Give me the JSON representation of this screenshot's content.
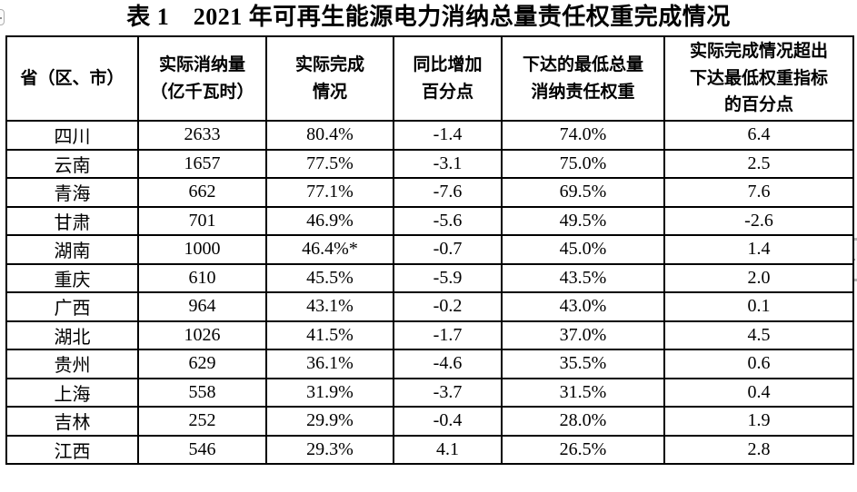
{
  "page": {
    "title": "表 1　2021 年可再生能源电力消纳总量责任权重完成情况"
  },
  "colors": {
    "text": "#000000",
    "border": "#000000",
    "background": "#ffffff"
  },
  "table": {
    "columns": [
      "省（区、市）",
      "实际消纳量\n（亿千瓦时）",
      "实际完成\n情况",
      "同比增加\n百分点",
      "下达的最低总量\n消纳责任权重",
      "实际完成情况超出\n下达最低权重指标\n的百分点"
    ],
    "rows": [
      [
        "四川",
        "2633",
        "80.4%",
        "-1.4",
        "74.0%",
        "6.4"
      ],
      [
        "云南",
        "1657",
        "77.5%",
        "-3.1",
        "75.0%",
        "2.5"
      ],
      [
        "青海",
        "662",
        "77.1%",
        "-7.6",
        "69.5%",
        "7.6"
      ],
      [
        "甘肃",
        "701",
        "46.9%",
        "-5.6",
        "49.5%",
        "-2.6"
      ],
      [
        "湖南",
        "1000",
        "46.4%*",
        "-0.7",
        "45.0%",
        "1.4"
      ],
      [
        "重庆",
        "610",
        "45.5%",
        "-5.9",
        "43.5%",
        "2.0"
      ],
      [
        "广西",
        "964",
        "43.1%",
        "-0.2",
        "43.0%",
        "0.1"
      ],
      [
        "湖北",
        "1026",
        "41.5%",
        "-1.7",
        "37.0%",
        "4.5"
      ],
      [
        "贵州",
        "629",
        "36.1%",
        "-4.6",
        "35.5%",
        "0.6"
      ],
      [
        "上海",
        "558",
        "31.9%",
        "-3.7",
        "31.5%",
        "0.4"
      ],
      [
        "吉林",
        "252",
        "29.9%",
        "-0.4",
        "28.0%",
        "1.9"
      ],
      [
        "江西",
        "546",
        "29.3%",
        "4.1",
        "26.5%",
        "2.8"
      ]
    ]
  }
}
